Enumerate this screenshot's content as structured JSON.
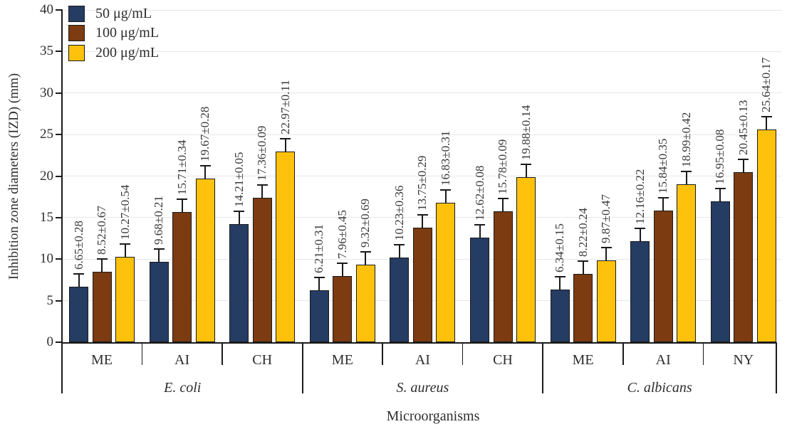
{
  "chart_data": {
    "type": "grouped-bar",
    "title": "",
    "ylabel": "Inhibition zone diameters (IZD) (mm)",
    "xlabel": "Microorganisms",
    "ylim": [
      0,
      40
    ],
    "yticks": [
      0,
      5,
      10,
      15,
      20,
      25,
      30,
      35,
      40
    ],
    "grid": "horizontal",
    "legend_position": "top-left",
    "series": [
      {
        "name": "50 μg/mL",
        "color": "#253c63"
      },
      {
        "name": "100 μg/mL",
        "color": "#7c3b10"
      },
      {
        "name": "200 μg/mL",
        "color": "#fec20d"
      }
    ],
    "groups": [
      {
        "label": "E. coli",
        "subgroups": [
          {
            "label": "ME",
            "bars": [
              {
                "value": 6.65,
                "sd": 0.28,
                "label": "6.65±0.28"
              },
              {
                "value": 8.52,
                "sd": 0.67,
                "label": "8.52±0.67"
              },
              {
                "value": 10.27,
                "sd": 0.54,
                "label": "10.27±0.54"
              }
            ]
          },
          {
            "label": "AI",
            "bars": [
              {
                "value": 9.68,
                "sd": 0.21,
                "label": "9.68±0.21"
              },
              {
                "value": 15.71,
                "sd": 0.34,
                "label": "15.71±0.34"
              },
              {
                "value": 19.67,
                "sd": 0.28,
                "label": "19.67±0.28"
              }
            ]
          },
          {
            "label": "CH",
            "bars": [
              {
                "value": 14.21,
                "sd": 0.05,
                "label": "14.21±0.05"
              },
              {
                "value": 17.36,
                "sd": 0.09,
                "label": "17.36±0.09"
              },
              {
                "value": 22.97,
                "sd": 0.11,
                "label": "22.97±0.11"
              }
            ]
          }
        ]
      },
      {
        "label": "S. aureus",
        "subgroups": [
          {
            "label": "ME",
            "bars": [
              {
                "value": 6.21,
                "sd": 0.31,
                "label": "6.21±0.31"
              },
              {
                "value": 7.96,
                "sd": 0.45,
                "label": "7.96±0.45"
              },
              {
                "value": 9.32,
                "sd": 0.69,
                "label": "9.32±0.69"
              }
            ]
          },
          {
            "label": "AI",
            "bars": [
              {
                "value": 10.23,
                "sd": 0.36,
                "label": "10.23±0.36"
              },
              {
                "value": 13.75,
                "sd": 0.29,
                "label": "13.75±0.29"
              },
              {
                "value": 16.83,
                "sd": 0.31,
                "label": "16.83±0.31"
              }
            ]
          },
          {
            "label": "CH",
            "bars": [
              {
                "value": 12.62,
                "sd": 0.08,
                "label": "12.62±0.08"
              },
              {
                "value": 15.78,
                "sd": 0.09,
                "label": "15.78±0.09"
              },
              {
                "value": 19.88,
                "sd": 0.14,
                "label": "19.88±0.14"
              }
            ]
          }
        ]
      },
      {
        "label": "C. albicans",
        "subgroups": [
          {
            "label": "ME",
            "bars": [
              {
                "value": 6.34,
                "sd": 0.15,
                "label": "6.34±0.15"
              },
              {
                "value": 8.22,
                "sd": 0.24,
                "label": "8.22±0.24"
              },
              {
                "value": 9.87,
                "sd": 0.47,
                "label": "9.87±0.47"
              }
            ]
          },
          {
            "label": "AI",
            "bars": [
              {
                "value": 12.16,
                "sd": 0.22,
                "label": "12.16±0.22"
              },
              {
                "value": 15.84,
                "sd": 0.35,
                "label": "15.84±0.35"
              },
              {
                "value": 18.99,
                "sd": 0.42,
                "label": "18.99±0.42"
              }
            ]
          },
          {
            "label": "NY",
            "bars": [
              {
                "value": 16.95,
                "sd": 0.08,
                "label": "16.95±0.08"
              },
              {
                "value": 20.45,
                "sd": 0.13,
                "label": "20.45±0.13"
              },
              {
                "value": 25.64,
                "sd": 0.17,
                "label": "25.64±0.17"
              }
            ]
          }
        ]
      }
    ]
  }
}
